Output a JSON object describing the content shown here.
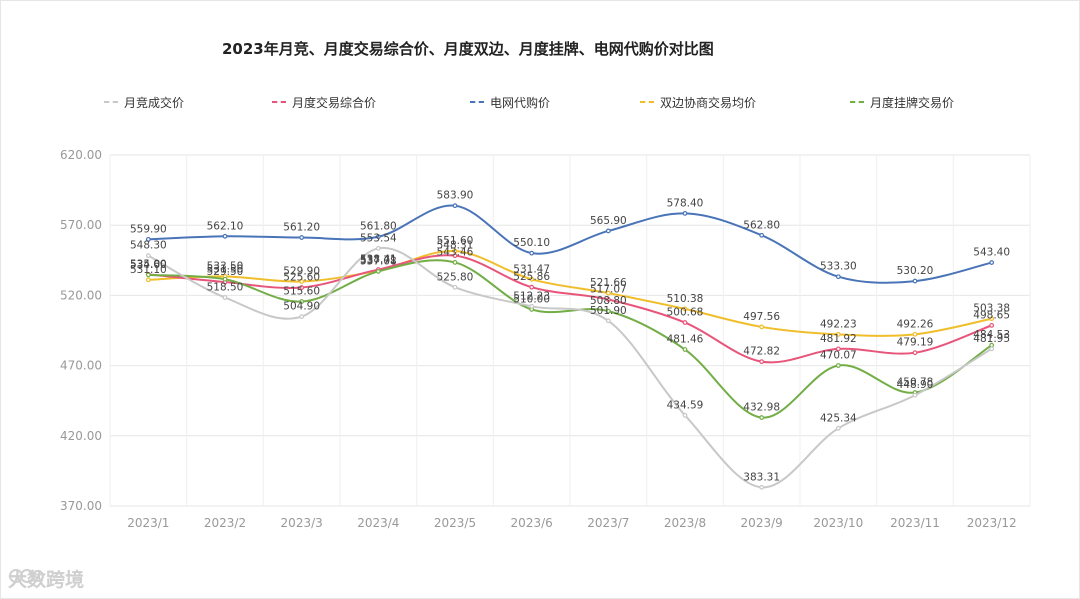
{
  "chart_data": {
    "type": "line",
    "title": "2023年月竞、月度交易综合价、月度双边、月度挂牌、电网代购价对比图",
    "categories": [
      "2023/1",
      "2023/2",
      "2023/3",
      "2023/4",
      "2023/5",
      "2023/6",
      "2023/7",
      "2023/8",
      "2023/9",
      "2023/10",
      "2023/11",
      "2023/12"
    ],
    "yticks": [
      "370.00",
      "420.00",
      "470.00",
      "520.00",
      "570.00",
      "620.00"
    ],
    "ylim": [
      370,
      620
    ],
    "xlabel": "",
    "ylabel": "",
    "grid": true,
    "legend_position": "top",
    "series": [
      {
        "name": "月竞成交价",
        "color": "#c8c8c8",
        "values": [
          548.3,
          518.5,
          504.9,
          553.54,
          525.8,
          512.23,
          501.9,
          434.59,
          383.31,
          425.34,
          448.9,
          481.95
        ],
        "labels": [
          "548.30",
          "518.50",
          "504.90",
          "553.54",
          "525.80",
          "512.23",
          "501.90",
          "434.59",
          "383.31",
          "425.34",
          "448.90",
          "481.95"
        ]
      },
      {
        "name": "月度交易综合价",
        "color": "#e8557a",
        "values": [
          535.0,
          529.5,
          525.6,
          538.41,
          548.31,
          525.86,
          517.07,
          500.68,
          472.82,
          481.92,
          479.19,
          498.65
        ],
        "labels": [
          "535.00",
          "529.50",
          "525.60",
          "538.41",
          "548.31",
          "525.86",
          "517.07",
          "500.68",
          "472.82",
          "481.92",
          "479.19",
          "498.65"
        ]
      },
      {
        "name": "电网代购价",
        "color": "#4a74b8",
        "values": [
          559.9,
          562.1,
          561.2,
          561.8,
          583.9,
          550.1,
          565.9,
          578.4,
          562.8,
          533.3,
          530.2,
          543.4
        ],
        "labels": [
          "559.90",
          "562.10",
          "561.20",
          "561.80",
          "583.90",
          "550.10",
          "565.90",
          "578.40",
          "562.80",
          "533.30",
          "530.20",
          "543.40"
        ]
      },
      {
        "name": "双边协商交易均价",
        "color": "#f0be2a",
        "values": [
          531.1,
          533.5,
          529.9,
          537.71,
          551.6,
          531.47,
          521.66,
          510.38,
          497.56,
          492.23,
          492.26,
          503.38
        ],
        "labels": [
          "531.10",
          "533.50",
          "529.90",
          "537.71",
          "551.60",
          "531.47",
          "521.66",
          "510.38",
          "497.56",
          "492.23",
          "492.26",
          "503.38"
        ]
      },
      {
        "name": "月度挂牌交易价",
        "color": "#72ad46",
        "values": [
          534.6,
          531.5,
          515.6,
          537.08,
          543.46,
          510.0,
          508.8,
          481.46,
          432.98,
          470.07,
          450.78,
          484.53
        ],
        "labels": [
          "534.60",
          "531.50",
          "515.60",
          "537.08",
          "543.46",
          "510.00",
          "508.80",
          "481.46",
          "432.98",
          "470.07",
          "450.78",
          "484.53"
        ]
      }
    ]
  },
  "watermark": "大数跨境"
}
